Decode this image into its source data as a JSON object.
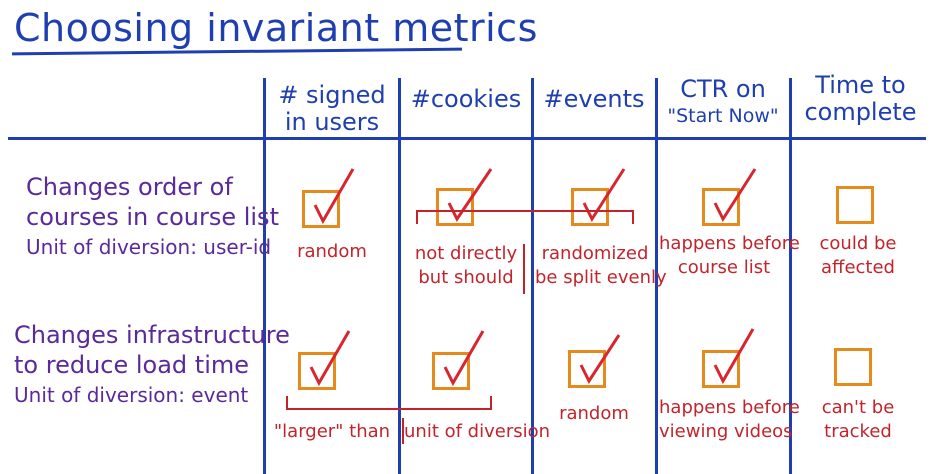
{
  "title": "Choosing invariant metrics",
  "columns": [
    {
      "line1": "# signed",
      "line2": "in users"
    },
    {
      "line1": "#cookies",
      "line2": ""
    },
    {
      "line1": "#events",
      "line2": ""
    },
    {
      "line1": "CTR on",
      "line2": "\"Start Now\""
    },
    {
      "line1": "Time to",
      "line2": "complete"
    }
  ],
  "rows": [
    {
      "line1": "Changes order of",
      "line2": "courses in course list",
      "unit": "Unit of diversion: user-id",
      "cells": [
        {
          "checked": true,
          "note1": "random",
          "note2": ""
        },
        {
          "checked": true,
          "note1": "not directly",
          "note2": "but should"
        },
        {
          "checked": true,
          "note1": "randomized",
          "note2": "be split evenly"
        },
        {
          "checked": true,
          "note1": "happens before",
          "note2": "course list"
        },
        {
          "checked": false,
          "note1": "could be",
          "note2": "affected"
        }
      ]
    },
    {
      "line1": "Changes infrastructure",
      "line2": "to reduce load time",
      "unit": "Unit of diversion: event",
      "cells": [
        {
          "checked": true,
          "note1": "\"larger\" than",
          "note2": ""
        },
        {
          "checked": true,
          "note1": "unit of diversion",
          "note2": ""
        },
        {
          "checked": true,
          "note1": "random",
          "note2": ""
        },
        {
          "checked": true,
          "note1": "happens before",
          "note2": "viewing videos"
        },
        {
          "checked": false,
          "note1": "can't be",
          "note2": "tracked"
        }
      ]
    }
  ],
  "colors": {
    "header": "#1f3fb0",
    "row_labels": "#5a2a9a",
    "notes": "#c3242b",
    "checkbox": "#e58a1c",
    "checkmark": "#d7262e"
  }
}
